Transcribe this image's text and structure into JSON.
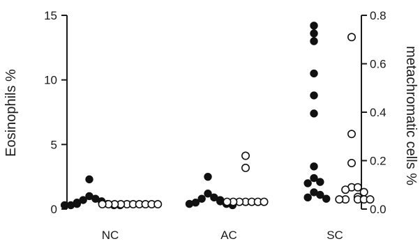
{
  "chart_data": {
    "type": "scatter",
    "categories": [
      "NC",
      "AC",
      "SC"
    ],
    "left_axis": {
      "label": "Eosinophils  %",
      "ylim": [
        0,
        15
      ],
      "ticks": [
        0,
        5,
        10,
        15
      ],
      "tick_labels": [
        "0",
        "5",
        "10",
        "15"
      ]
    },
    "right_axis": {
      "label": "metachromatic cells  %",
      "ylim": [
        0,
        0.8
      ],
      "ticks": [
        0,
        0.2,
        0.4,
        0.6,
        0.8
      ],
      "tick_labels": [
        "0.0",
        "0.2",
        "0.4",
        "0.6",
        "0.8"
      ]
    },
    "series": [
      {
        "axis": "left",
        "marker": "filled",
        "points": [
          {
            "category": "NC",
            "values": [
              2.3,
              1.0,
              0.8,
              0.7,
              0.6,
              0.5,
              0.4,
              0.4,
              0.3,
              0.3,
              0.3,
              0.3
            ]
          },
          {
            "category": "AC",
            "values": [
              2.5,
              1.2,
              0.9,
              0.8,
              0.7,
              0.6,
              0.5,
              0.4,
              0.4,
              0.4,
              0.3
            ]
          },
          {
            "category": "SC",
            "values": [
              14.2,
              13.6,
              13.0,
              10.5,
              8.8,
              7.4,
              3.3,
              2.4,
              2.1,
              2.0,
              1.3,
              1.1,
              0.9,
              0.8
            ]
          }
        ]
      },
      {
        "axis": "right",
        "marker": "open",
        "points": [
          {
            "category": "NC",
            "values": [
              0.02,
              0.02,
              0.02,
              0.02,
              0.02,
              0.02,
              0.02,
              0.02,
              0.02,
              0.02
            ]
          },
          {
            "category": "AC",
            "values": [
              0.22,
              0.17,
              0.03,
              0.03,
              0.03,
              0.03,
              0.03,
              0.03,
              0.03
            ]
          },
          {
            "category": "SC",
            "values": [
              0.71,
              0.31,
              0.19,
              0.09,
              0.09,
              0.08,
              0.07,
              0.05,
              0.04,
              0.04,
              0.04,
              0.04,
              0.04
            ]
          }
        ]
      }
    ],
    "grid": false
  }
}
